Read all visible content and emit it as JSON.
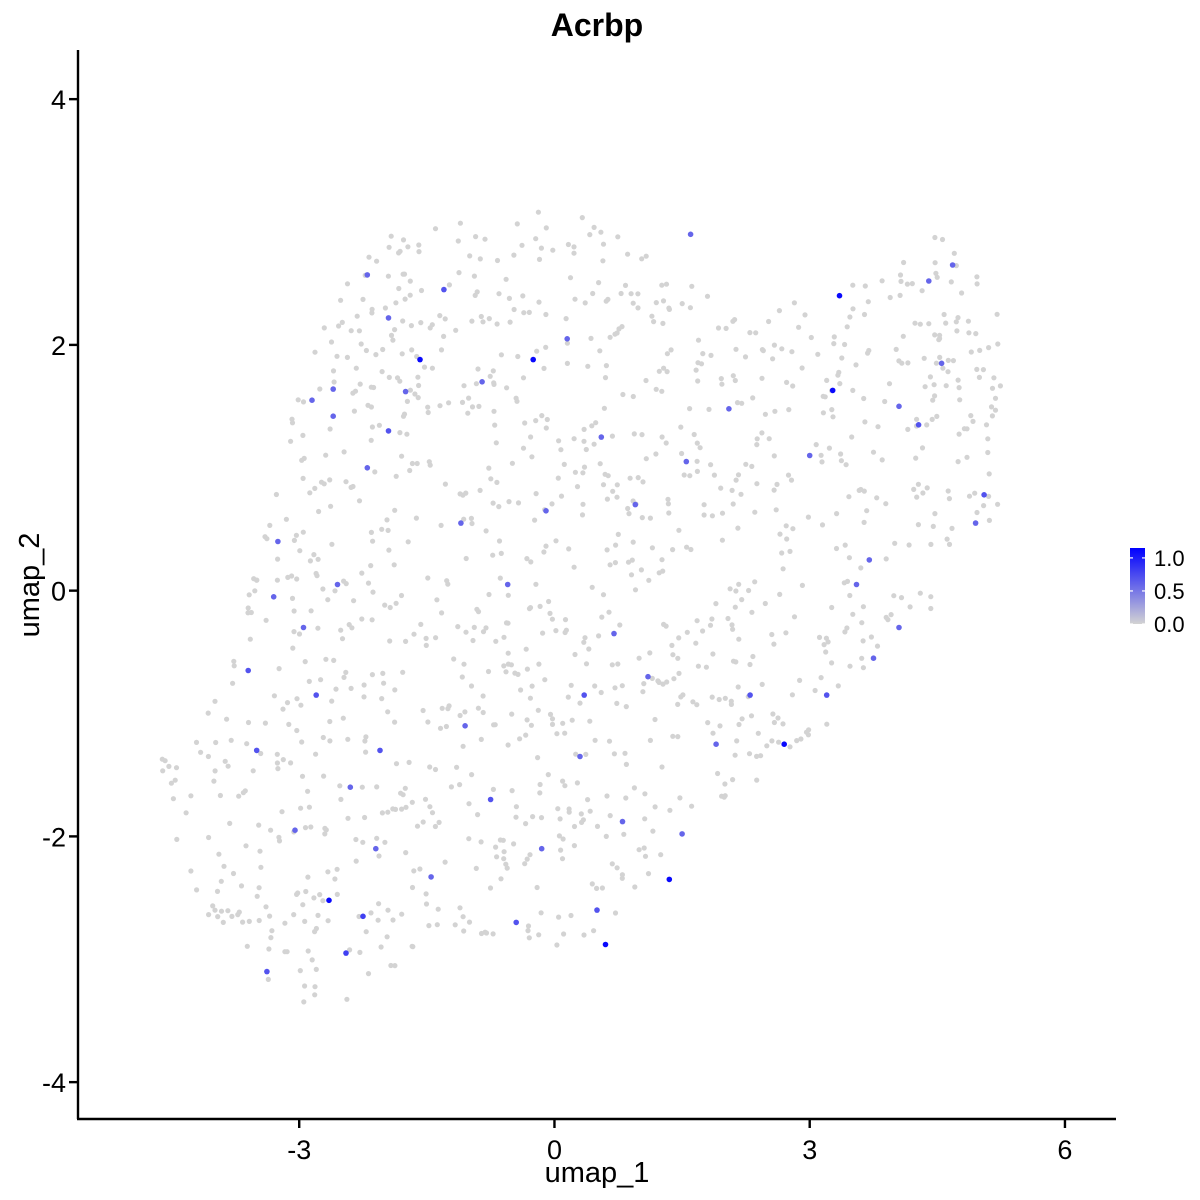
{
  "chart_data": {
    "type": "scatter",
    "title": "Acrbp",
    "xlabel": "umap_1",
    "ylabel": "umap_2",
    "xlim": [
      -5.6,
      6.6
    ],
    "ylim": [
      -4.3,
      4.4
    ],
    "xticks": [
      -3,
      0,
      3,
      6
    ],
    "yticks": [
      4,
      2,
      0,
      -2,
      -4
    ],
    "xtick_labels": [
      "-3",
      "0",
      "3",
      "6"
    ],
    "ytick_labels": [
      "4",
      "2",
      "0",
      "-2",
      "-4"
    ],
    "grid": false,
    "legend": {
      "placement": "right",
      "type": "colorbar",
      "ticks": [
        1.0,
        0.5,
        0.0
      ],
      "tick_labels": [
        "1.0",
        "0.5",
        "0.0"
      ],
      "range": [
        0,
        1.15
      ]
    },
    "color_scale": {
      "low": "#d3d3d3",
      "high": "#0000ff"
    },
    "series": [
      {
        "points": [
          {
            "x": -2.85,
            "y": 1.55,
            "v": 0.6
          },
          {
            "x": -2.6,
            "y": 1.64,
            "v": 0.6
          },
          {
            "x": -2.2,
            "y": 2.57,
            "v": 0.6
          },
          {
            "x": -1.95,
            "y": 2.22,
            "v": 0.6
          },
          {
            "x": -1.58,
            "y": 1.88,
            "v": 1.1
          },
          {
            "x": -1.3,
            "y": 2.45,
            "v": 0.7
          },
          {
            "x": -0.25,
            "y": 1.88,
            "v": 1.1
          },
          {
            "x": 1.6,
            "y": 2.9,
            "v": 0.6
          },
          {
            "x": 3.35,
            "y": 2.4,
            "v": 1.1
          },
          {
            "x": 3.27,
            "y": 1.63,
            "v": 1.1
          },
          {
            "x": 4.4,
            "y": 2.52,
            "v": 0.6
          },
          {
            "x": 4.68,
            "y": 2.65,
            "v": 0.6
          },
          {
            "x": 4.28,
            "y": 1.35,
            "v": 0.7
          },
          {
            "x": 5.05,
            "y": 0.78,
            "v": 0.7
          },
          {
            "x": 4.95,
            "y": 0.55,
            "v": 0.6
          },
          {
            "x": 3.7,
            "y": 0.25,
            "v": 0.6
          },
          {
            "x": 3.55,
            "y": 0.05,
            "v": 0.6
          },
          {
            "x": 2.7,
            "y": -1.25,
            "v": 1.1
          },
          {
            "x": 2.3,
            "y": -0.85,
            "v": 0.7
          },
          {
            "x": 3.2,
            "y": -0.85,
            "v": 0.7
          },
          {
            "x": 1.35,
            "y": -2.35,
            "v": 1.1
          },
          {
            "x": 0.6,
            "y": -2.88,
            "v": 1.1
          },
          {
            "x": 0.5,
            "y": -2.6,
            "v": 0.7
          },
          {
            "x": 0.8,
            "y": -1.88,
            "v": 0.6
          },
          {
            "x": 1.5,
            "y": -1.98,
            "v": 0.6
          },
          {
            "x": 0.3,
            "y": -1.35,
            "v": 0.6
          },
          {
            "x": -0.75,
            "y": -1.7,
            "v": 0.7
          },
          {
            "x": -1.45,
            "y": -2.33,
            "v": 0.6
          },
          {
            "x": -2.65,
            "y": -2.52,
            "v": 1.1
          },
          {
            "x": -2.25,
            "y": -2.65,
            "v": 0.8
          },
          {
            "x": -2.45,
            "y": -2.95,
            "v": 0.8
          },
          {
            "x": -3.38,
            "y": -3.1,
            "v": 0.7
          },
          {
            "x": -3.5,
            "y": -1.3,
            "v": 0.7
          },
          {
            "x": -3.6,
            "y": -0.65,
            "v": 0.7
          },
          {
            "x": -2.95,
            "y": -0.3,
            "v": 0.6
          },
          {
            "x": -2.55,
            "y": 0.05,
            "v": 0.6
          },
          {
            "x": -3.3,
            "y": -0.05,
            "v": 0.6
          },
          {
            "x": -2.2,
            "y": 1.0,
            "v": 0.6
          },
          {
            "x": -1.95,
            "y": 1.3,
            "v": 0.7
          },
          {
            "x": -1.1,
            "y": 0.55,
            "v": 0.6
          },
          {
            "x": -0.55,
            "y": 0.05,
            "v": 0.6
          },
          {
            "x": 0.7,
            "y": -0.35,
            "v": 0.6
          },
          {
            "x": 0.35,
            "y": -0.85,
            "v": 0.7
          },
          {
            "x": -2.8,
            "y": -0.85,
            "v": 0.7
          },
          {
            "x": -2.05,
            "y": -1.3,
            "v": 0.7
          },
          {
            "x": -0.45,
            "y": -2.7,
            "v": 0.7
          },
          {
            "x": 1.1,
            "y": -0.7,
            "v": 0.6
          },
          {
            "x": 0.95,
            "y": 0.7,
            "v": 0.6
          },
          {
            "x": 1.55,
            "y": 1.05,
            "v": 0.6
          },
          {
            "x": 2.05,
            "y": 1.48,
            "v": 0.6
          },
          {
            "x": 4.55,
            "y": 1.85,
            "v": 0.6
          },
          {
            "x": -1.75,
            "y": 1.62,
            "v": 0.6
          },
          {
            "x": -2.6,
            "y": 1.42,
            "v": 0.6
          },
          {
            "x": -0.85,
            "y": 1.7,
            "v": 0.6
          },
          {
            "x": 0.15,
            "y": 2.05,
            "v": 0.6
          },
          {
            "x": -3.25,
            "y": 0.4,
            "v": 0.6
          },
          {
            "x": -2.4,
            "y": -1.6,
            "v": 0.6
          },
          {
            "x": -3.05,
            "y": -1.95,
            "v": 0.6
          },
          {
            "x": -2.1,
            "y": -2.1,
            "v": 0.6
          },
          {
            "x": -1.05,
            "y": -1.1,
            "v": 0.6
          },
          {
            "x": -0.15,
            "y": -2.1,
            "v": 0.6
          },
          {
            "x": 1.9,
            "y": -1.25,
            "v": 0.6
          },
          {
            "x": 3.75,
            "y": -0.55,
            "v": 0.6
          },
          {
            "x": 4.05,
            "y": -0.3,
            "v": 0.6
          },
          {
            "x": -0.1,
            "y": 0.65,
            "v": 0.6
          },
          {
            "x": 0.55,
            "y": 1.25,
            "v": 0.6
          },
          {
            "x": 4.05,
            "y": 1.5,
            "v": 0.6
          },
          {
            "x": 3.0,
            "y": 1.1,
            "v": 0.6
          }
        ]
      }
    ]
  }
}
